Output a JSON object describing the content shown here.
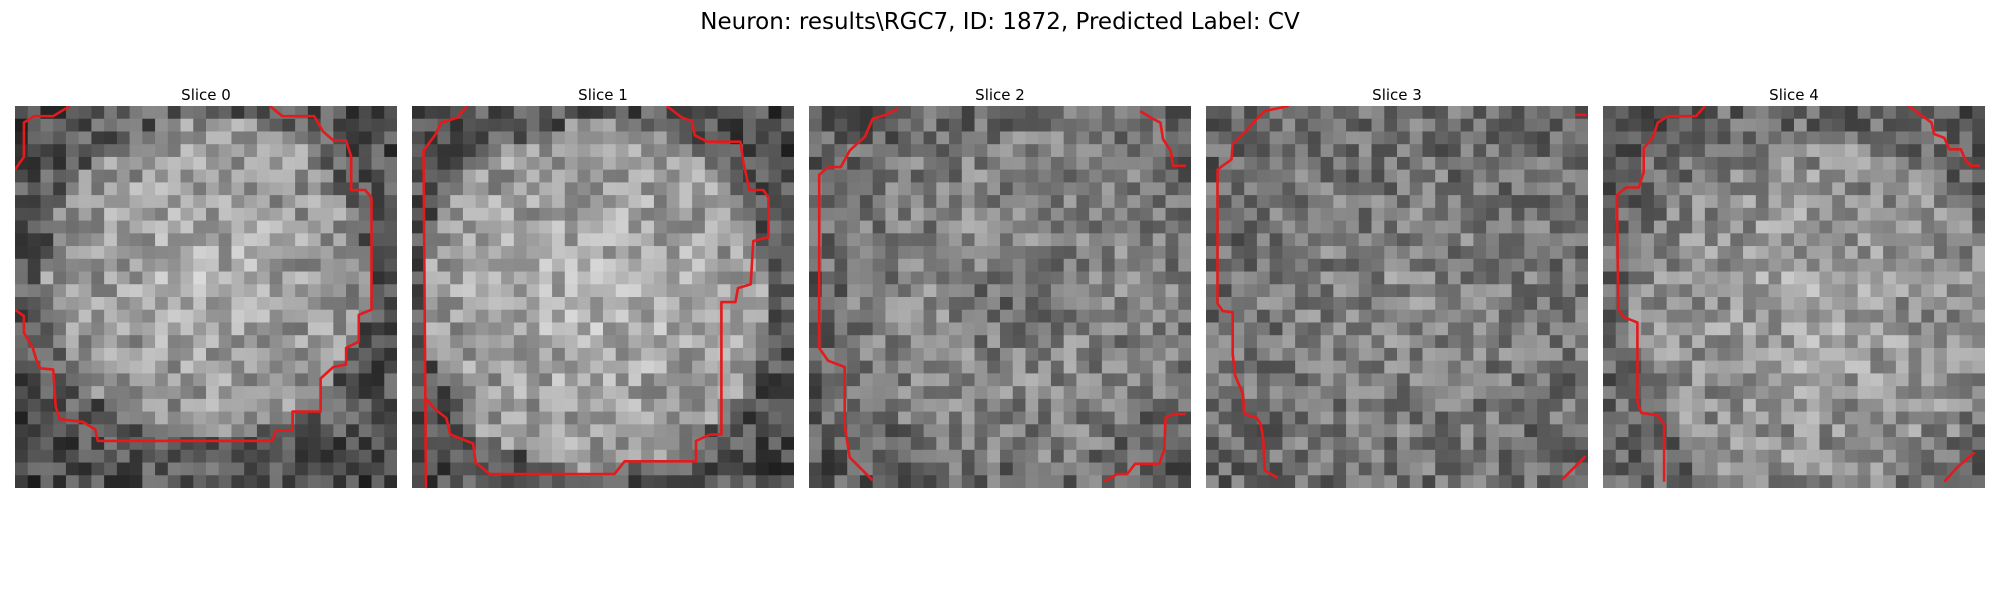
{
  "figure": {
    "title": "Neuron: results\\RGC7, ID: 1872, Predicted Label: CV"
  },
  "overlay": {
    "contour_color": "#e41a1c"
  },
  "slices": [
    {
      "title": "Slice 0"
    },
    {
      "title": "Slice 1"
    },
    {
      "title": "Slice 2"
    },
    {
      "title": "Slice 3"
    },
    {
      "title": "Slice 4"
    }
  ]
}
